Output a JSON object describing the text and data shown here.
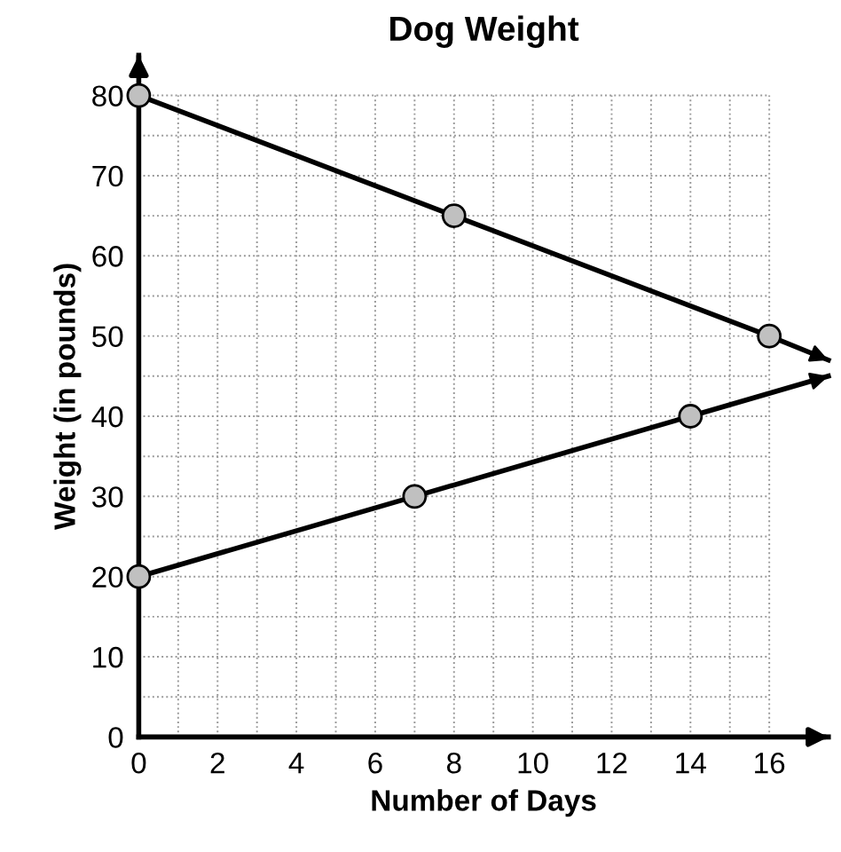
{
  "chart_data": {
    "type": "line",
    "title": "Dog Weight",
    "xlabel": "Number of Days",
    "ylabel": "Weight (in pounds)",
    "series": [
      {
        "color": "#000000",
        "x": [
          0,
          8,
          16,
          17.5
        ],
        "values": [
          80,
          65,
          50,
          47
        ]
      },
      {
        "color": "#000000",
        "x": [
          0,
          7,
          14,
          17.5
        ],
        "values": [
          20,
          30,
          40,
          45
        ]
      }
    ],
    "xlim": [
      0,
      17.5
    ],
    "ylim": [
      0,
      85
    ],
    "xticks": [
      0,
      2,
      4,
      6,
      8,
      10,
      12,
      14,
      16
    ],
    "yticks": [
      0,
      10,
      20,
      30,
      40,
      50,
      60,
      70,
      80
    ],
    "grid": true,
    "marker": "circle",
    "line_style": "solid"
  }
}
